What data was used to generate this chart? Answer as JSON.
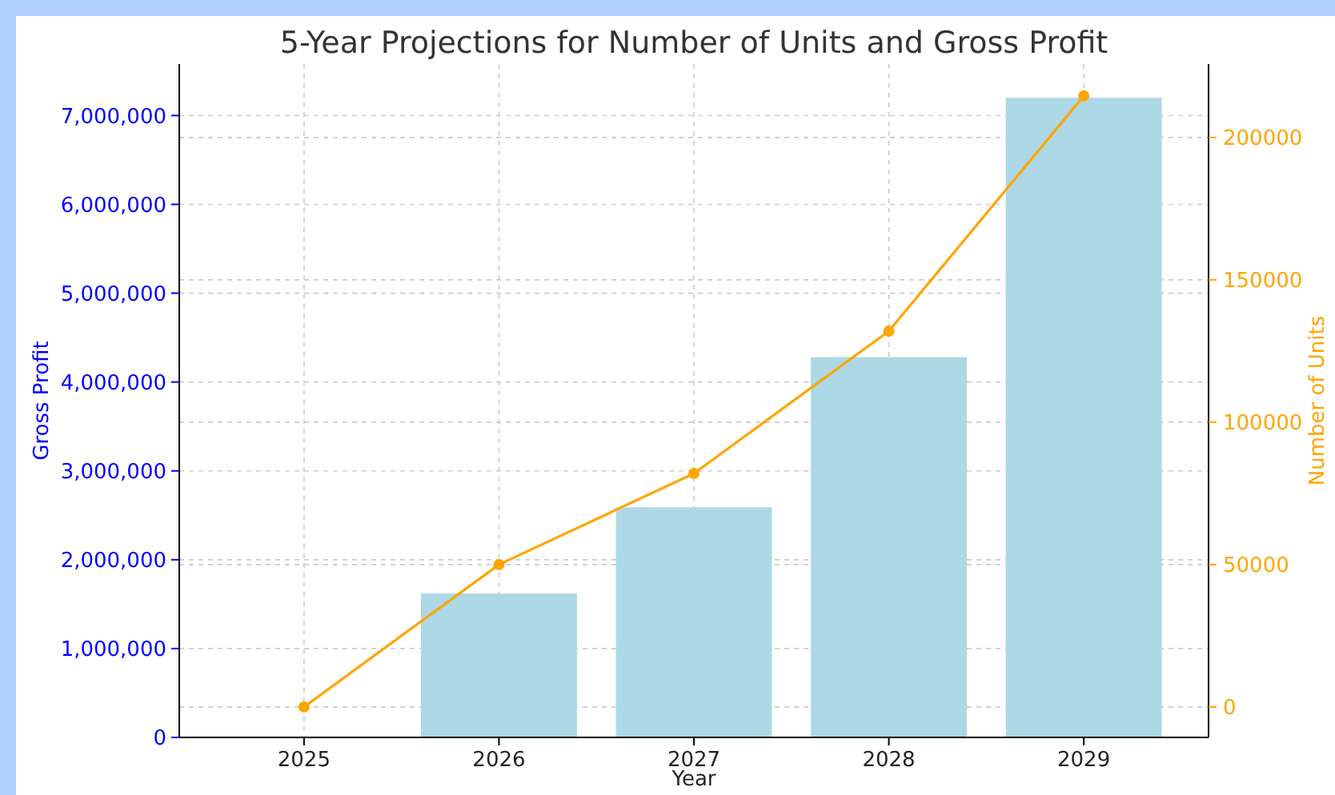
{
  "chart_data": {
    "type": "bar",
    "title": "5-Year Projections for Number of Units and Gross Profit",
    "xlabel": "Year",
    "ylabel": "Gross Profit",
    "y2label": "Number of Units",
    "categories": [
      "2025",
      "2026",
      "2027",
      "2028",
      "2029"
    ],
    "series": [
      {
        "color": "#add8e6",
        "values": [
          0,
          1620000,
          2590000,
          4280000,
          7200000
        ]
      },
      {
        "type": "line",
        "axis": "y2",
        "color": "#ffa500",
        "values": [
          0,
          50000,
          82000,
          132000,
          214600
        ]
      }
    ],
    "ylim": [
      0,
      7580000
    ],
    "yticks": [
      {
        "value": 0,
        "label": "0"
      },
      {
        "value": 1000000,
        "label": "1,000,000"
      },
      {
        "value": 2000000,
        "label": "2,000,000"
      },
      {
        "value": 3000000,
        "label": "3,000,000"
      },
      {
        "value": 4000000,
        "label": "4,000,000"
      },
      {
        "value": 5000000,
        "label": "5,000,000"
      },
      {
        "value": 6000000,
        "label": "6,000,000"
      },
      {
        "value": 7000000,
        "label": "7,000,000"
      }
    ],
    "y2lim": [
      -10700,
      225800
    ],
    "y2ticks": [
      0,
      50000,
      100000,
      150000,
      200000
    ],
    "grid": true,
    "marker": "circle"
  }
}
